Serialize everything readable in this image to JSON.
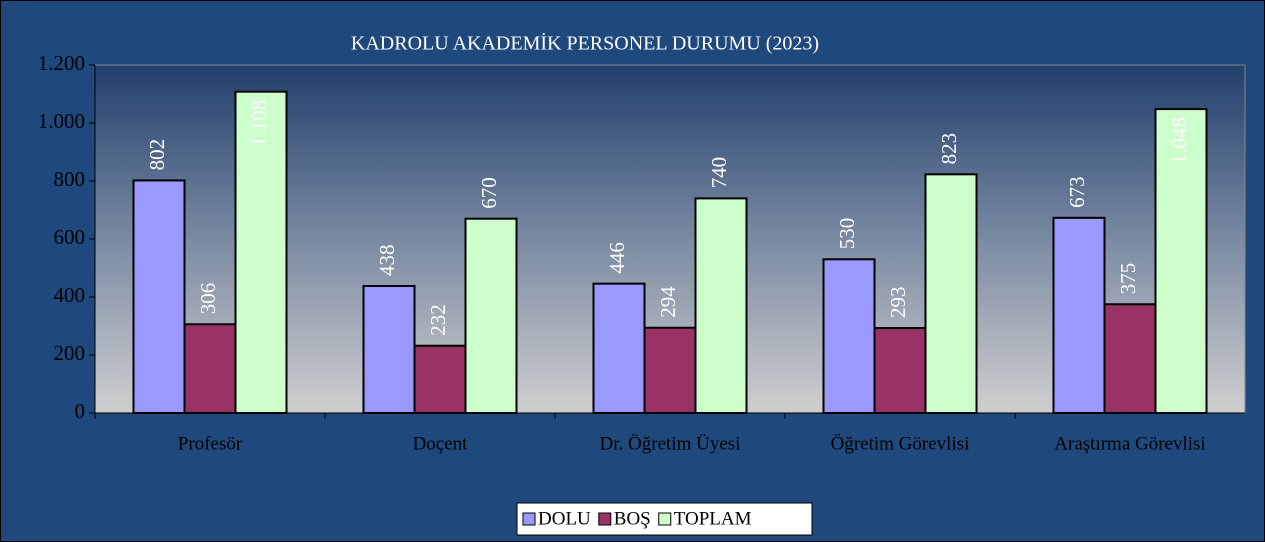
{
  "chart_data": {
    "type": "bar",
    "title": "KADROLU AKADEMİK PERSONEL DURUMU (2023)",
    "categories": [
      "Profesör",
      "Doçent",
      "Dr. Öğretim Üyesi",
      "Öğretim Görevlisi",
      "Araştırma Görevlisi"
    ],
    "series": [
      {
        "name": "DOLU",
        "color": "#9999ff",
        "values": [
          802,
          438,
          446,
          530,
          673
        ],
        "value_labels": [
          "802",
          "438",
          "446",
          "530",
          "673"
        ]
      },
      {
        "name": "BOŞ",
        "color": "#993366",
        "values": [
          306,
          232,
          294,
          293,
          375
        ],
        "value_labels": [
          "306",
          "232",
          "294",
          "293",
          "375"
        ]
      },
      {
        "name": "TOPLAM",
        "color": "#ccffcc",
        "values": [
          1108,
          670,
          740,
          823,
          1048
        ],
        "value_labels": [
          "1.108",
          "670",
          "740",
          "823",
          "1.048"
        ]
      }
    ],
    "ylim": [
      0,
      1200
    ],
    "yticks": [
      0,
      200,
      400,
      600,
      800,
      {
        "value": 1000,
        "label": "1.000"
      },
      {
        "value": 1200,
        "label": "1.200"
      }
    ],
    "legend": "bottom"
  }
}
